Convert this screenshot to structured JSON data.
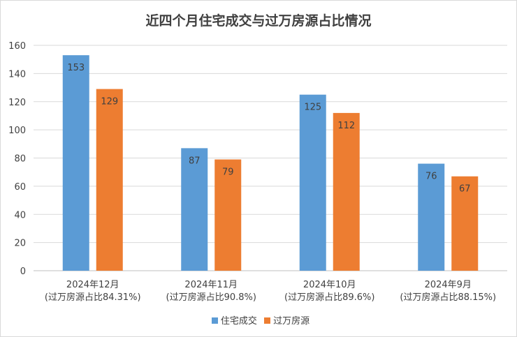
{
  "chart_data": {
    "type": "bar",
    "title": "近四个月住宅成交与过万房源占比情况",
    "categories": [
      [
        "2024年12月",
        "(过万房源占比84.31%)"
      ],
      [
        "2024年11月",
        "(过万房源占比90.8%)"
      ],
      [
        "2024年10月",
        "(过万房源占比89.6%)"
      ],
      [
        "2024年9月",
        "(过万房源占比88.15%)"
      ]
    ],
    "series": [
      {
        "name": "住宅成交",
        "color": "#5B9BD5",
        "values": [
          153,
          87,
          125,
          76
        ]
      },
      {
        "name": "过万房源",
        "color": "#ED7D31",
        "values": [
          129,
          79,
          112,
          67
        ]
      }
    ],
    "ylim": [
      0,
      160
    ],
    "yticks": [
      0,
      20,
      40,
      60,
      80,
      100,
      120,
      140,
      160
    ],
    "grid": true,
    "legend": "bottom"
  }
}
